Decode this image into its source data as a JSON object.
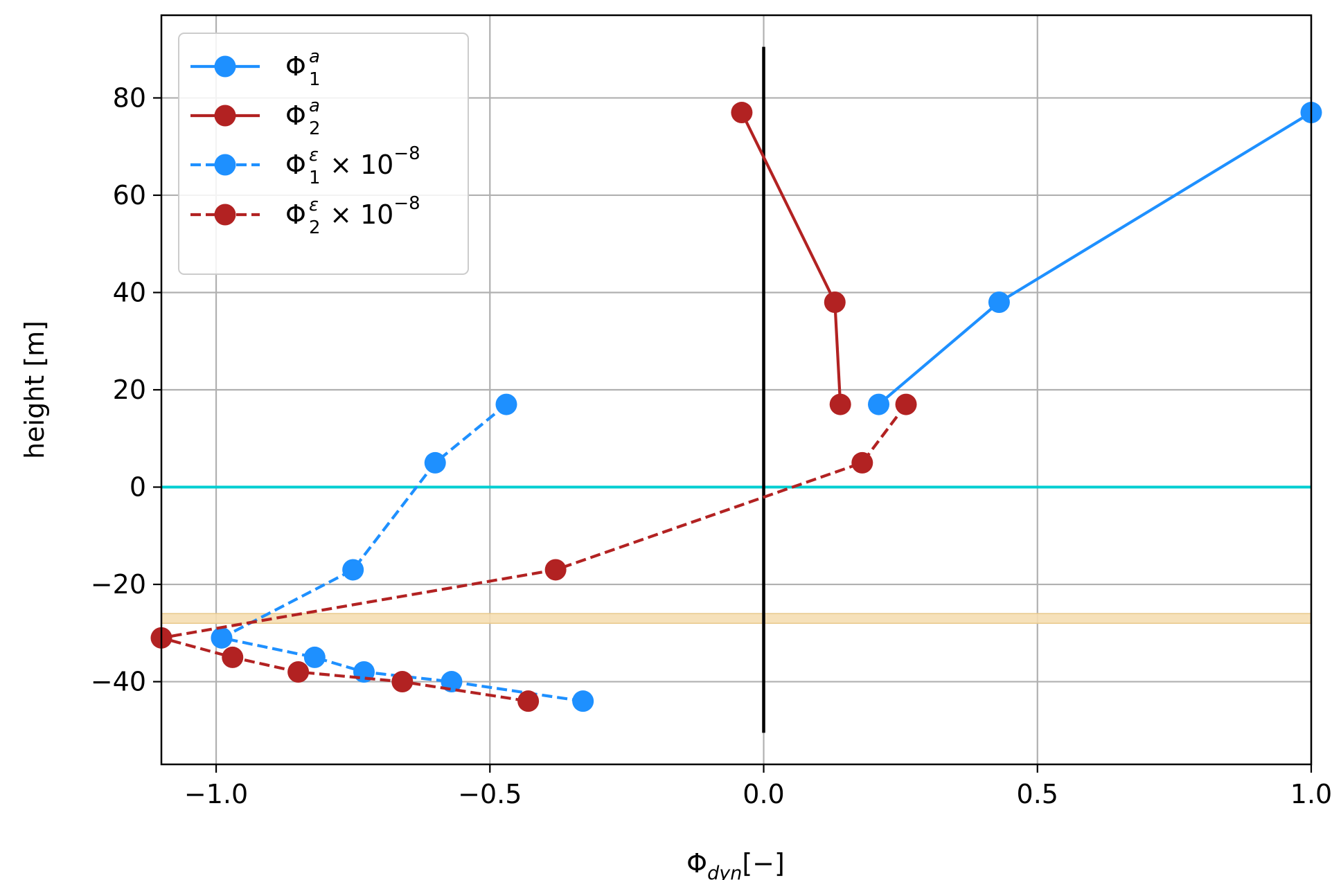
{
  "chart_data": {
    "type": "line",
    "title": "",
    "xlabel": {
      "main": "Φ",
      "sub": "dyn",
      "suffix": "[−]"
    },
    "ylabel": "height [m]",
    "xlim": [
      -1.1,
      1.0
    ],
    "ylim": [
      -57,
      97
    ],
    "grid": true,
    "legend_position": "top-left",
    "x_ticks": [
      -1.0,
      -0.5,
      0.0,
      0.5,
      1.0
    ],
    "x_tick_labels": [
      "−1.0",
      "−0.5",
      "0.0",
      "0.5",
      "1.0"
    ],
    "y_ticks": [
      -40,
      -20,
      0,
      20,
      40,
      60,
      80
    ],
    "y_tick_labels": [
      "−40",
      "−20",
      "0",
      "20",
      "40",
      "60",
      "80"
    ],
    "reference_lines": {
      "vertical": {
        "x": 0.0,
        "y_range": [
          -50.5,
          90.5
        ],
        "color": "#000000"
      },
      "horizontal": {
        "y": 0,
        "color": "#00ced1"
      },
      "band": {
        "y_range": [
          -28,
          -26
        ],
        "color": "#f5deb3"
      }
    },
    "series": [
      {
        "name": "Φ1a",
        "legend": {
          "base": "Φ",
          "sub": "1",
          "sup": "a",
          "suffix": ""
        },
        "style": "solid",
        "color": "#1e90ff",
        "x": [
          0.21,
          0.43,
          1.0
        ],
        "y": [
          17,
          38,
          77
        ]
      },
      {
        "name": "Φ2a",
        "legend": {
          "base": "Φ",
          "sub": "2",
          "sup": "a",
          "suffix": ""
        },
        "style": "solid",
        "color": "#b22222",
        "x": [
          -0.04,
          0.13,
          0.14
        ],
        "y": [
          77,
          38,
          17
        ]
      },
      {
        "name": "Φ1ε × 10−8",
        "legend": {
          "base": "Φ",
          "sub": "1",
          "sup": "ε",
          "suffix": " × 10",
          "exp": "−8"
        },
        "style": "dashed",
        "color": "#1e90ff",
        "x": [
          -0.47,
          -0.6,
          -0.75,
          -0.99,
          -0.82,
          -0.73,
          -0.57,
          -0.33
        ],
        "y": [
          17,
          5,
          -17,
          -31,
          -35,
          -38,
          -40,
          -44
        ]
      },
      {
        "name": "Φ2ε × 10−8",
        "legend": {
          "base": "Φ",
          "sub": "2",
          "sup": "ε",
          "suffix": " × 10",
          "exp": "−8"
        },
        "style": "dashed",
        "color": "#b22222",
        "x": [
          0.26,
          0.18,
          -0.38,
          -1.1,
          -0.97,
          -0.85,
          -0.66,
          -0.43
        ],
        "y": [
          17,
          5,
          -17,
          -31,
          -35,
          -38,
          -40,
          -44
        ]
      }
    ]
  }
}
